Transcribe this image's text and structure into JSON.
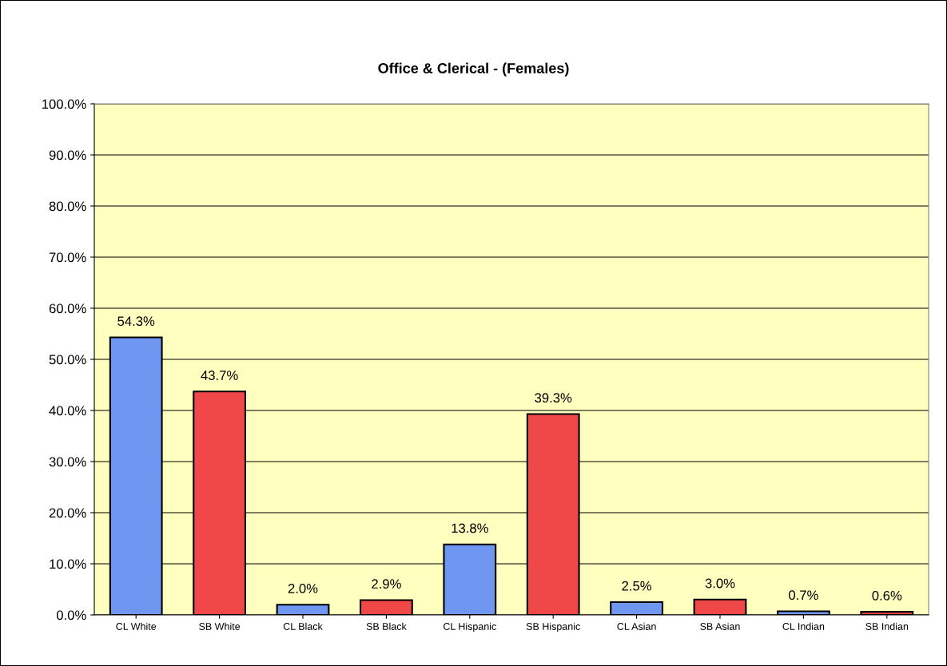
{
  "chart_data": {
    "type": "bar",
    "title": "Office & Clerical - (Females)",
    "categories": [
      "CL White",
      "SB White",
      "CL Black",
      "SB Black",
      "CL Hispanic",
      "SB Hispanic",
      "CL Asian",
      "SB Asian",
      "CL Indian",
      "SB Indian"
    ],
    "values": [
      54.3,
      43.7,
      2.0,
      2.9,
      13.8,
      39.3,
      2.5,
      3.0,
      0.7,
      0.6
    ],
    "value_labels": [
      "54.3%",
      "43.7%",
      "2.0%",
      "2.9%",
      "13.8%",
      "39.3%",
      "2.5%",
      "3.0%",
      "0.7%",
      "0.6%"
    ],
    "colors": [
      "#6f96f0",
      "#f04848",
      "#6f96f0",
      "#f04848",
      "#6f96f0",
      "#f04848",
      "#6f96f0",
      "#f04848",
      "#6f96f0",
      "#f04848"
    ],
    "ylim": [
      0,
      100
    ],
    "yticks": [
      {
        "value": 0,
        "label": "0.0%"
      },
      {
        "value": 10,
        "label": "10.0%"
      },
      {
        "value": 20,
        "label": "20.0%"
      },
      {
        "value": 30,
        "label": "30.0%"
      },
      {
        "value": 40,
        "label": "40.0%"
      },
      {
        "value": 50,
        "label": "50.0%"
      },
      {
        "value": 60,
        "label": "60.0%"
      },
      {
        "value": 70,
        "label": "70.0%"
      },
      {
        "value": 80,
        "label": "80.0%"
      },
      {
        "value": 90,
        "label": "90.0%"
      },
      {
        "value": 100,
        "label": "100.0%"
      }
    ],
    "grid": "y",
    "legend": false
  }
}
